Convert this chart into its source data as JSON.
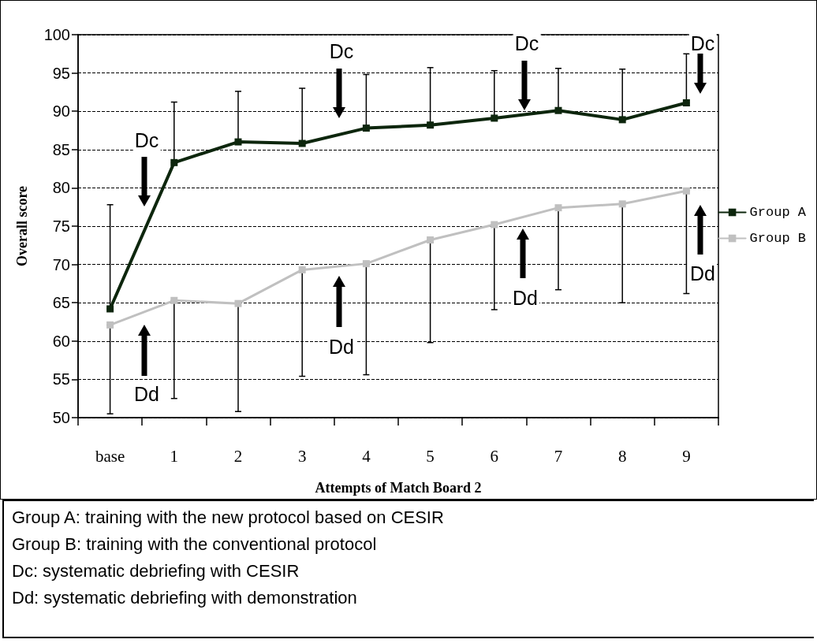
{
  "chart_data": {
    "type": "line",
    "xlabel": "Attempts of Match Board 2",
    "ylabel": "Overall score",
    "categories": [
      "base",
      "1",
      "2",
      "3",
      "4",
      "5",
      "6",
      "7",
      "8",
      "9"
    ],
    "series": [
      {
        "name": "Group A",
        "color": "#0d260d",
        "values": [
          64.2,
          83.3,
          86.0,
          85.8,
          87.8,
          88.2,
          89.1,
          90.1,
          88.9,
          91.1
        ],
        "errors": [
          [
            64.2,
            77.8
          ],
          [
            83.3,
            91.2
          ],
          [
            86.0,
            92.6
          ],
          [
            85.8,
            93.0
          ],
          [
            87.8,
            94.8
          ],
          [
            88.2,
            95.7
          ],
          [
            89.1,
            95.3
          ],
          [
            90.1,
            95.6
          ],
          [
            88.9,
            95.5
          ],
          [
            91.1,
            97.5
          ]
        ]
      },
      {
        "name": "Group B",
        "color": "#c0c0c0",
        "values": [
          62.1,
          65.3,
          64.9,
          69.3,
          70.1,
          73.2,
          75.2,
          77.4,
          77.9,
          79.6
        ],
        "errors": [
          [
            50.5,
            62.1
          ],
          [
            52.5,
            65.3
          ],
          [
            50.8,
            64.9
          ],
          [
            55.4,
            69.3
          ],
          [
            55.6,
            70.1
          ],
          [
            59.8,
            73.2
          ],
          [
            64.1,
            75.2
          ],
          [
            66.7,
            77.4
          ],
          [
            65.0,
            77.9
          ],
          [
            66.2,
            79.6
          ]
        ]
      }
    ],
    "ylim": [
      50,
      100
    ],
    "yticks": [
      50,
      55,
      60,
      65,
      70,
      75,
      80,
      85,
      90,
      95,
      100
    ],
    "grid": "y",
    "legend": "right",
    "marker": "square",
    "line_style": "solid",
    "annotations": [
      "Dc",
      "Dc",
      "Dc",
      "Dc",
      "Dd",
      "Dd",
      "Dd",
      "Dd",
      "Group A: training with the new protocol based on CESIR",
      "Group B: training with the conventional protocol",
      "Dc: systematic debriefing with CESIR",
      "Dd: systematic debriefing with demonstration"
    ]
  }
}
